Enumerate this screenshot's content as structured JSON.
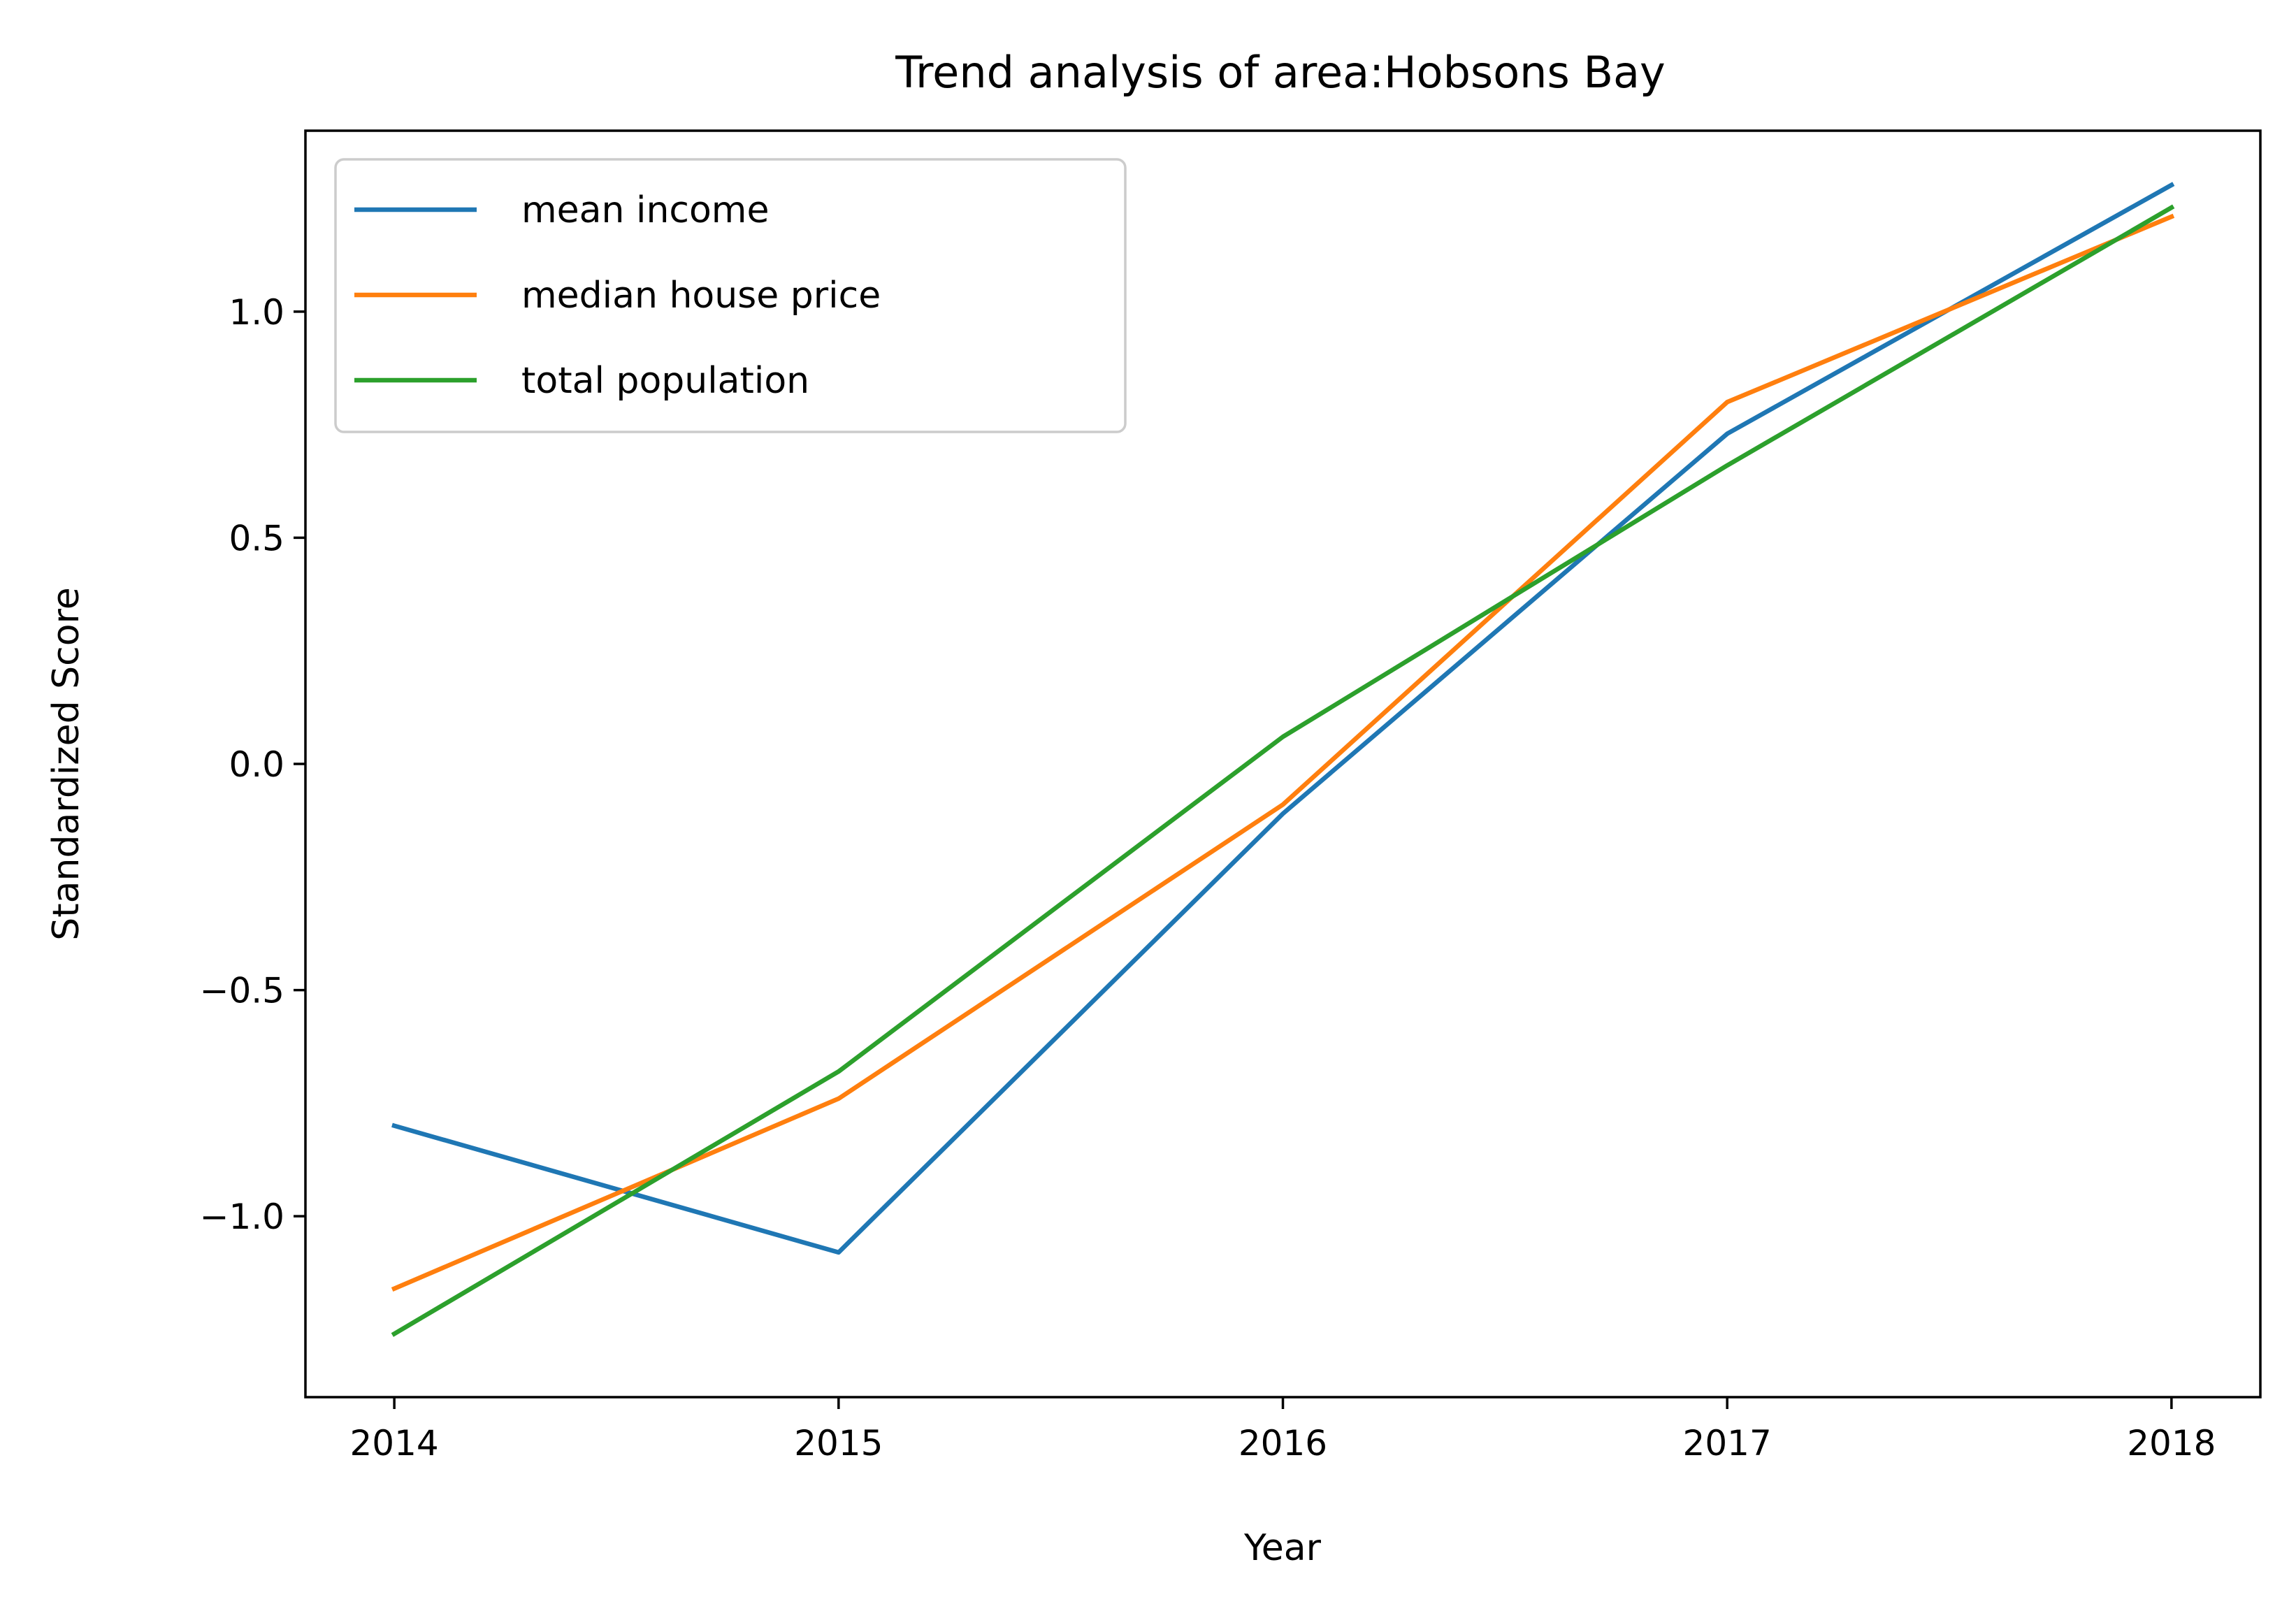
{
  "chart_data": {
    "type": "line",
    "title": "Trend analysis of area:Hobsons Bay",
    "xlabel": "Year",
    "ylabel": "Standardized Score",
    "x": [
      2014,
      2015,
      2016,
      2017,
      2018
    ],
    "x_tick_labels": [
      "2014",
      "2015",
      "2016",
      "2017",
      "2018"
    ],
    "y_ticks": [
      -1.0,
      -0.5,
      0.0,
      0.5,
      1.0
    ],
    "y_tick_labels": [
      "−1.0",
      "−0.5",
      "0.0",
      "0.5",
      "1.0"
    ],
    "xlim": [
      2013.8,
      2018.2
    ],
    "ylim": [
      -1.4,
      1.4
    ],
    "grid": false,
    "legend_position": "upper-left",
    "series": [
      {
        "name": "mean income",
        "color": "#1f77b4",
        "values": [
          -0.8,
          -1.08,
          -0.11,
          0.73,
          1.28
        ]
      },
      {
        "name": "median house price",
        "color": "#ff7f0e",
        "values": [
          -1.16,
          -0.74,
          -0.09,
          0.8,
          1.21
        ]
      },
      {
        "name": "total population",
        "color": "#2ca02c",
        "values": [
          -1.26,
          -0.68,
          0.06,
          0.66,
          1.23
        ]
      }
    ]
  }
}
